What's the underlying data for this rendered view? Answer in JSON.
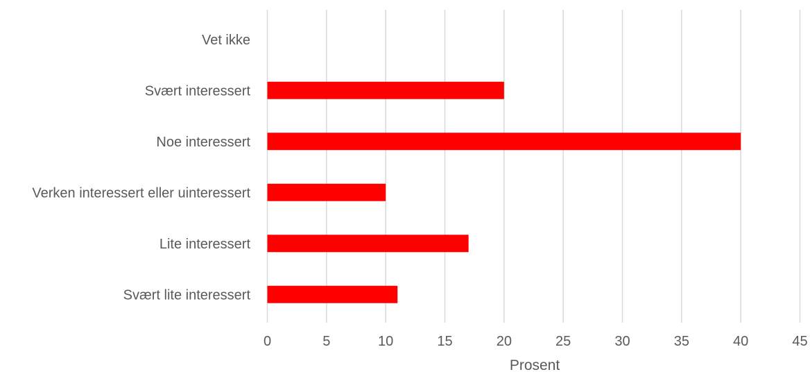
{
  "chart_data": {
    "type": "bar",
    "orientation": "horizontal",
    "categories": [
      "Vet ikke",
      "Svært interessert",
      "Noe interessert",
      "Verken interessert eller uinteressert",
      "Lite interessert",
      "Svært lite interessert"
    ],
    "values": [
      0,
      20,
      40,
      10,
      17,
      11
    ],
    "xlabel": "Prosent",
    "ylabel": "",
    "xlim": [
      0,
      45
    ],
    "xticks": [
      "0",
      "5",
      "10",
      "15",
      "20",
      "25",
      "30",
      "35",
      "40",
      "45"
    ],
    "grid": true,
    "legend": "none",
    "colors": {
      "bar": "#ff0000",
      "grid": "#d9d9d9",
      "text": "#595959"
    }
  }
}
